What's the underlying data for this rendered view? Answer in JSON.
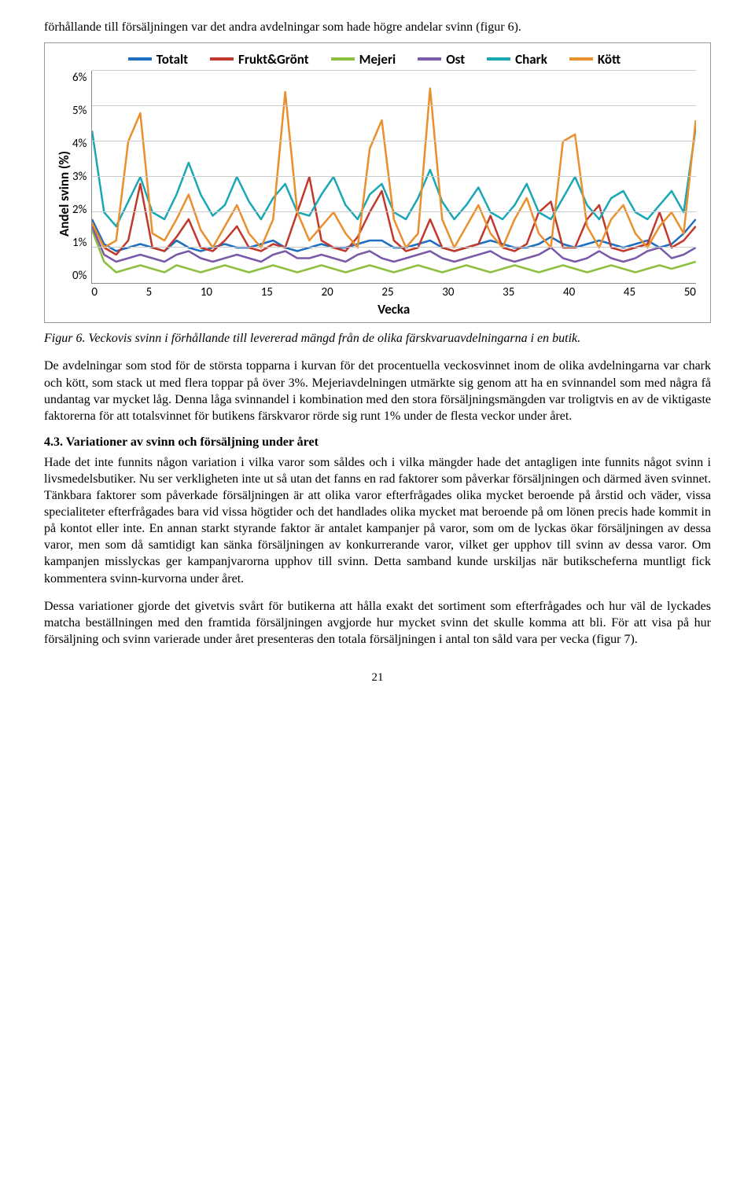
{
  "intro_text": "förhållande till försäljningen var det andra avdelningar som hade högre andelar svinn (figur 6).",
  "chart": {
    "type": "line",
    "legend": [
      {
        "label": "Totalt",
        "color": "#1f6fc0"
      },
      {
        "label": "Frukt&Grönt",
        "color": "#c0392b"
      },
      {
        "label": "Mejeri",
        "color": "#8dbf3f"
      },
      {
        "label": "Ost",
        "color": "#7a5aa8"
      },
      {
        "label": "Chark",
        "color": "#1aa7b5"
      },
      {
        "label": "Kött",
        "color": "#e98f2c"
      }
    ],
    "ylabel": "Andel svinn (%)",
    "xlabel": "Vecka",
    "ylim": [
      0,
      6
    ],
    "ytick_step": 1,
    "yticks": [
      "6%",
      "5%",
      "4%",
      "3%",
      "2%",
      "1%",
      "0%"
    ],
    "xlim": [
      0,
      50
    ],
    "xticks": [
      "0",
      "5",
      "10",
      "15",
      "20",
      "25",
      "30",
      "35",
      "40",
      "45",
      "50"
    ],
    "grid_color": "#cccccc",
    "line_width": 2.5,
    "background_color": "#ffffff",
    "series": {
      "Totalt": [
        1.8,
        1.1,
        0.9,
        1.0,
        1.1,
        1.0,
        0.9,
        1.2,
        1.0,
        0.9,
        1.0,
        1.1,
        1.0,
        1.0,
        1.1,
        1.2,
        1.0,
        0.9,
        1.0,
        1.1,
        1.0,
        1.0,
        1.1,
        1.2,
        1.2,
        1.0,
        1.0,
        1.1,
        1.2,
        1.0,
        0.9,
        1.0,
        1.1,
        1.2,
        1.1,
        1.0,
        1.0,
        1.1,
        1.3,
        1.1,
        1.0,
        1.1,
        1.2,
        1.1,
        1.0,
        1.1,
        1.2,
        1.0,
        1.1,
        1.4,
        1.8
      ],
      "Frukt&Grönt": [
        1.7,
        1.0,
        0.8,
        1.2,
        2.8,
        1.0,
        0.9,
        1.3,
        1.8,
        1.0,
        0.9,
        1.2,
        1.6,
        1.0,
        0.9,
        1.1,
        1.0,
        2.0,
        3.0,
        1.2,
        1.0,
        0.9,
        1.3,
        2.0,
        2.6,
        1.2,
        0.9,
        1.0,
        1.8,
        1.0,
        0.9,
        1.0,
        1.1,
        1.9,
        1.0,
        0.9,
        1.1,
        2.0,
        2.3,
        1.0,
        1.0,
        1.8,
        2.2,
        1.0,
        0.9,
        1.0,
        1.1,
        2.0,
        1.0,
        1.2,
        1.6
      ],
      "Mejeri": [
        1.5,
        0.6,
        0.3,
        0.4,
        0.5,
        0.4,
        0.3,
        0.5,
        0.4,
        0.3,
        0.4,
        0.5,
        0.4,
        0.3,
        0.4,
        0.5,
        0.4,
        0.3,
        0.4,
        0.5,
        0.4,
        0.3,
        0.4,
        0.5,
        0.4,
        0.3,
        0.4,
        0.5,
        0.4,
        0.3,
        0.4,
        0.5,
        0.4,
        0.3,
        0.4,
        0.5,
        0.4,
        0.3,
        0.4,
        0.5,
        0.4,
        0.3,
        0.4,
        0.5,
        0.4,
        0.3,
        0.4,
        0.5,
        0.4,
        0.5,
        0.6
      ],
      "Ost": [
        1.6,
        0.8,
        0.6,
        0.7,
        0.8,
        0.7,
        0.6,
        0.8,
        0.9,
        0.7,
        0.6,
        0.7,
        0.8,
        0.7,
        0.6,
        0.8,
        0.9,
        0.7,
        0.7,
        0.8,
        0.7,
        0.6,
        0.8,
        0.9,
        0.7,
        0.6,
        0.7,
        0.8,
        0.9,
        0.7,
        0.6,
        0.7,
        0.8,
        0.9,
        0.7,
        0.6,
        0.7,
        0.8,
        1.0,
        0.7,
        0.6,
        0.7,
        0.9,
        0.7,
        0.6,
        0.7,
        0.9,
        1.0,
        0.7,
        0.8,
        1.0
      ],
      "Chark": [
        4.3,
        2.0,
        1.6,
        2.3,
        3.0,
        2.0,
        1.8,
        2.5,
        3.4,
        2.5,
        1.9,
        2.2,
        3.0,
        2.3,
        1.8,
        2.4,
        2.8,
        2.0,
        1.9,
        2.5,
        3.0,
        2.2,
        1.8,
        2.5,
        2.8,
        2.0,
        1.8,
        2.4,
        3.2,
        2.3,
        1.8,
        2.2,
        2.7,
        2.0,
        1.8,
        2.2,
        2.8,
        2.0,
        1.8,
        2.4,
        3.0,
        2.2,
        1.8,
        2.4,
        2.6,
        2.0,
        1.8,
        2.2,
        2.6,
        2.0,
        4.4
      ],
      "Kött": [
        1.7,
        1.0,
        1.2,
        4.0,
        4.8,
        1.4,
        1.2,
        1.8,
        2.5,
        1.5,
        1.0,
        1.6,
        2.2,
        1.4,
        1.0,
        1.8,
        5.4,
        2.0,
        1.2,
        1.6,
        2.0,
        1.4,
        1.0,
        3.8,
        4.6,
        1.8,
        1.0,
        1.4,
        5.5,
        1.8,
        1.0,
        1.6,
        2.2,
        1.4,
        1.0,
        1.8,
        2.4,
        1.4,
        1.0,
        4.0,
        4.2,
        1.6,
        1.0,
        1.8,
        2.2,
        1.4,
        1.0,
        1.6,
        2.0,
        1.4,
        4.6
      ]
    }
  },
  "caption": "Figur 6. Veckovis svinn i förhållande till levererad mängd från de olika färskvaruavdelningarna i en butik.",
  "para1": "De avdelningar som stod för de största topparna i kurvan för det procentuella veckosvinnet inom de olika avdelningarna var chark och kött, som stack ut med flera toppar på över 3%. Mejeriavdelningen utmärkte sig genom att ha en svinnandel som med några få undantag var mycket låg. Denna låga svinnandel i kombination med den stora försäljningsmängden var troligtvis en av de viktigaste faktorerna för att totalsvinnet för butikens färskvaror rörde sig runt 1% under de flesta veckor under året.",
  "section_title": "4.3. Variationer av svinn och försäljning under året",
  "para2": "Hade det inte funnits någon variation i vilka varor som såldes och i vilka mängder hade det antagligen inte funnits något svinn i livsmedelsbutiker. Nu ser verkligheten inte ut så utan det fanns en rad faktorer som påverkar försäljningen och därmed även svinnet. Tänkbara faktorer som påverkade försäljningen är att olika varor efterfrågades olika mycket beroende på årstid och väder, vissa specialiteter efterfrågades bara vid vissa högtider och det handlades olika mycket mat beroende på om lönen precis hade kommit in på kontot eller inte. En annan starkt styrande faktor är antalet kampanjer på varor, som om de lyckas ökar försäljningen av dessa varor, men som då samtidigt kan sänka försäljningen av konkurrerande varor, vilket ger upphov till svinn av dessa varor. Om kampanjen misslyckas ger kampanjvarorna upphov till svinn. Detta samband kunde urskiljas när butikscheferna muntligt fick kommentera svinn-kurvorna under året.",
  "para3": "Dessa variationer gjorde det givetvis svårt för butikerna att hålla exakt det sortiment som efterfrågades och hur väl de lyckades matcha beställningen med den framtida försäljningen avgjorde hur mycket svinn det skulle komma att bli. För att visa på hur försäljning och svinn varierade under året presenteras den totala försäljningen i antal ton såld vara per vecka (figur 7).",
  "page_number": "21"
}
